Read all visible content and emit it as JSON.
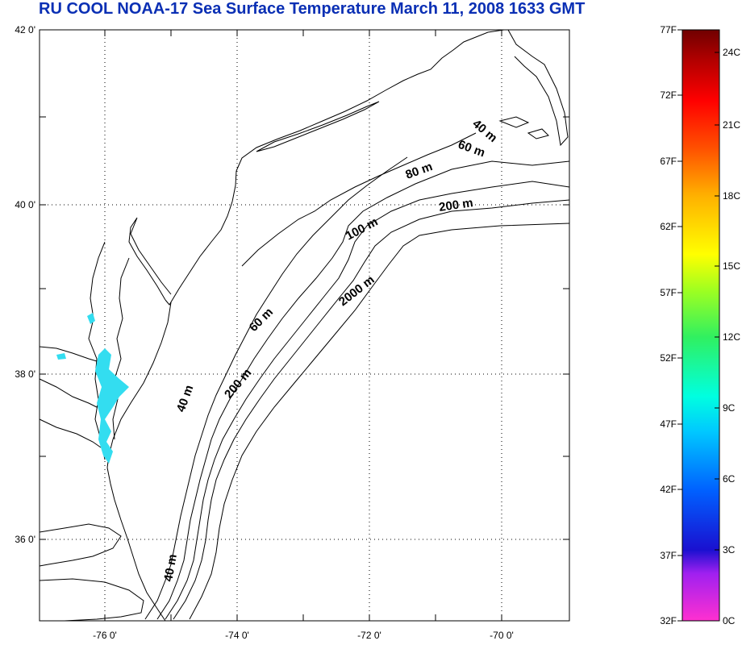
{
  "title": "RU COOL  NOAA-17 Sea Surface Temperature March 11, 2008 1633 GMT",
  "map": {
    "lat_ticks": [
      {
        "value": 42,
        "label": "42 0'"
      },
      {
        "value": 40,
        "label": "40 0'"
      },
      {
        "value": 38,
        "label": "38 0'"
      },
      {
        "value": 36,
        "label": "36 0'"
      }
    ],
    "lon_ticks": [
      {
        "value": -76,
        "label": "-76 0'"
      },
      {
        "value": -74,
        "label": "-74 0'"
      },
      {
        "value": -72,
        "label": "-72 0'"
      },
      {
        "value": -70,
        "label": "-70 0'"
      }
    ],
    "depth_labels": [
      "40 m",
      "60 m",
      "80 m",
      "200 m",
      "100 m",
      "2000 m",
      "60 m",
      "200 m",
      "40 m",
      "40 m"
    ],
    "land_color": "#ffffff",
    "data_color": "#33ddf0"
  },
  "colorbar": {
    "f_labels": [
      "77F",
      "72F",
      "67F",
      "62F",
      "57F",
      "52F",
      "47F",
      "42F",
      "37F",
      "32F"
    ],
    "c_labels": [
      "24C",
      "21C",
      "18C",
      "15C",
      "12C",
      "9C",
      "6C",
      "3C",
      "0C"
    ],
    "stops": [
      "#ff2fd0",
      "#a020f0",
      "#1a10d0",
      "#0060ff",
      "#00c8ff",
      "#00ffd8",
      "#30f060",
      "#c0ff20",
      "#ffff00",
      "#ffb000",
      "#ff5000",
      "#ff0000",
      "#b00000",
      "#700000"
    ]
  }
}
